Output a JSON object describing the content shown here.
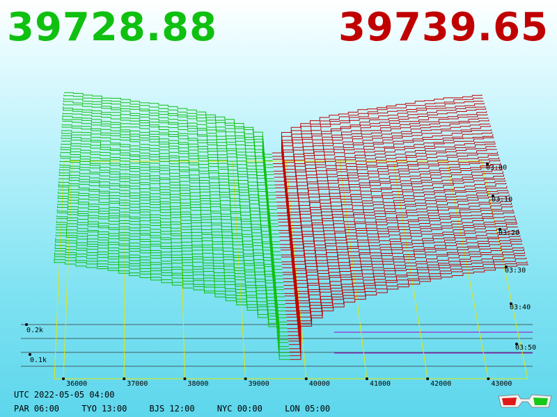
{
  "prices": {
    "bid": "39728.88",
    "ask": "39739.65",
    "bid_color": "#10c010",
    "ask_color": "#c00000"
  },
  "footer": {
    "utc": "UTC 2022-05-05 04:00",
    "timezones": [
      "PAR 06:00",
      "TYO 13:00",
      "BJS 12:00",
      "NYC 00:00",
      "LON 05:00"
    ]
  },
  "icons": {
    "corner": "3d-glasses-icon"
  },
  "chart_data": {
    "type": "3d-depth-chart",
    "x_ticks": [
      "36000",
      "37000",
      "38000",
      "39000",
      "40000",
      "41000",
      "42000",
      "43000"
    ],
    "x_values": [
      36000,
      37000,
      38000,
      39000,
      40000,
      41000,
      42000,
      43000
    ],
    "xlim": [
      35850,
      43650
    ],
    "time_ticks": [
      "03:00",
      "03:10",
      "03:20",
      "03:30",
      "03:40",
      "03:50"
    ],
    "volume_ticks": [
      "0.2k",
      "0.1k"
    ],
    "bid_color": "#10c010",
    "ask_color": "#c00000",
    "grid_color": "#e6e600",
    "grid": true,
    "mid_price": 39734,
    "series_count": 60
  }
}
